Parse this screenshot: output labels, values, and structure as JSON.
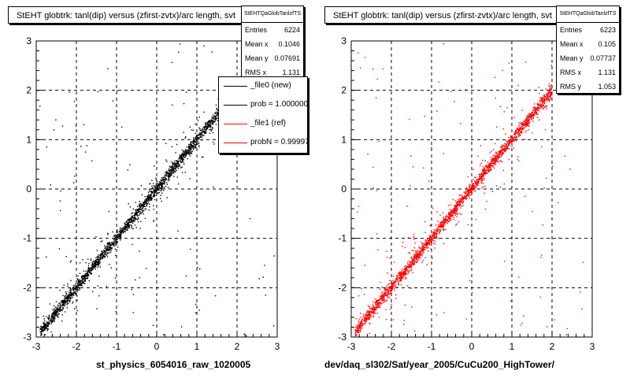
{
  "chart_data": [
    {
      "type": "scatter",
      "title": "StEHT globtrk: tanl(dip) versus (zfirst-zvtx)/arc length, svt",
      "xlabel": "st_physics_6054016_raw_1020005",
      "ylabel": "",
      "xlim": [
        -3,
        3
      ],
      "ylim": [
        -3,
        3
      ],
      "x_ticks": [
        "-3",
        "-2",
        "-1",
        "0",
        "1",
        "2",
        "3"
      ],
      "y_ticks": [
        "-3",
        "-2",
        "-1",
        "0",
        "1",
        "2",
        "3"
      ],
      "grid": true,
      "marker_color": "#000000",
      "trend": {
        "x_start": -2.9,
        "x_end": 1.9
      },
      "stats": {
        "title": "StEHTQaGlobTanlzfTS",
        "rows": [
          {
            "label": "Entries",
            "value": "6224"
          },
          {
            "label": "Mean x",
            "value": "0.1046"
          },
          {
            "label": "Mean y",
            "value": "0.07691"
          },
          {
            "label": "RMS x",
            "value": "1.131"
          }
        ]
      },
      "legend": [
        {
          "label": "_file0 (new)",
          "color": "#000000"
        },
        {
          "label": "prob = 1.000000",
          "color": "#000000"
        },
        {
          "label": "_file1 (ref)",
          "color": "#ff0000"
        },
        {
          "label": "probN = 0.999977",
          "color": "#ff0000"
        }
      ]
    },
    {
      "type": "scatter",
      "title": "StEHT globtrk: tanl(dip) versus (zfirst-zvtx)/arc length, svt",
      "xlabel": "dev/daq_sl302/Sat/year_2005/CuCu200_HighTower/",
      "ylabel": "",
      "xlim": [
        -3,
        3
      ],
      "ylim": [
        -3,
        3
      ],
      "x_ticks": [
        "-3",
        "-2",
        "-1",
        "0",
        "1",
        "2",
        "3"
      ],
      "y_ticks": [
        "-3",
        "-2",
        "-1",
        "0",
        "1",
        "2",
        "3"
      ],
      "grid": true,
      "marker_color": "#ff0000",
      "trend": {
        "x_start": -2.9,
        "x_end": 2.0
      },
      "stats": {
        "title": "StEHTQaGlobTanlzfTS",
        "rows": [
          {
            "label": "Entries",
            "value": "6223"
          },
          {
            "label": "Mean x",
            "value": "0.105"
          },
          {
            "label": "Mean y",
            "value": "0.07737"
          },
          {
            "label": "RMS x",
            "value": "1.131"
          },
          {
            "label": "RMS y",
            "value": "1.053"
          }
        ]
      }
    }
  ]
}
